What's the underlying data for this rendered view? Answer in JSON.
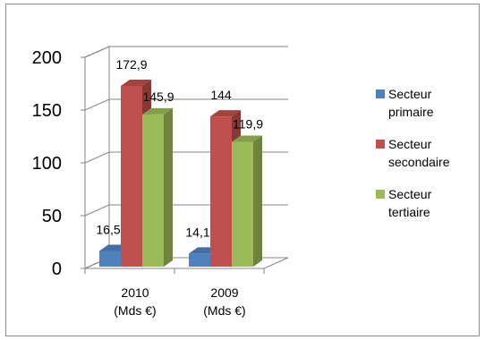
{
  "chart_data": {
    "type": "bar",
    "three_d": true,
    "categories": [
      "2010\n(Mds €)",
      "2009\n(Mds €)"
    ],
    "series": [
      {
        "name": "Secteur primaire",
        "values": [
          16.5,
          14.1
        ],
        "labels": [
          "16,5",
          "14,1"
        ],
        "color": "#4f81bd"
      },
      {
        "name": "Secteur secondaire",
        "values": [
          172.9,
          144
        ],
        "labels": [
          "172,9",
          "144"
        ],
        "color": "#c0504d"
      },
      {
        "name": "Secteur tertiaire",
        "values": [
          145.9,
          119.9
        ],
        "labels": [
          "145,9",
          "119,9"
        ],
        "color": "#9bbb59"
      }
    ],
    "ylim": [
      0,
      200
    ],
    "yticks": [
      "0",
      "50",
      "100",
      "150",
      "200"
    ],
    "grid": true,
    "legend_position": "right",
    "title": "",
    "xlabel": "",
    "ylabel": ""
  }
}
